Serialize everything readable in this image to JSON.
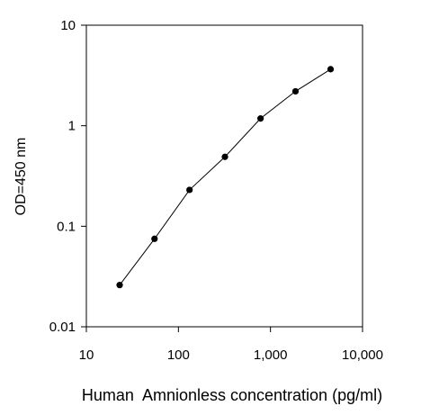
{
  "chart_data": {
    "type": "line",
    "title": "",
    "xlabel": "Human  Amnionless concentration (pg/ml)",
    "ylabel": "OD=450 nm",
    "x_scale": "log",
    "y_scale": "log",
    "xlim": [
      10,
      10000
    ],
    "ylim": [
      0.01,
      10
    ],
    "x_ticks": [
      {
        "value": 10,
        "label": "10"
      },
      {
        "value": 100,
        "label": "100"
      },
      {
        "value": 1000,
        "label": "1,000"
      },
      {
        "value": 10000,
        "label": "10,000"
      }
    ],
    "y_ticks": [
      {
        "value": 0.01,
        "label": "0.01"
      },
      {
        "value": 0.1,
        "label": "0.1"
      },
      {
        "value": 1,
        "label": "1"
      },
      {
        "value": 10,
        "label": "10"
      }
    ],
    "grid": false,
    "legend": "none",
    "series": [
      {
        "x": [
          23,
          55,
          132,
          320,
          780,
          1870,
          4500
        ],
        "y": [
          0.026,
          0.075,
          0.23,
          0.49,
          1.18,
          2.2,
          3.65
        ]
      }
    ],
    "colors": {
      "line": "#000000",
      "marker": "#000000"
    }
  }
}
